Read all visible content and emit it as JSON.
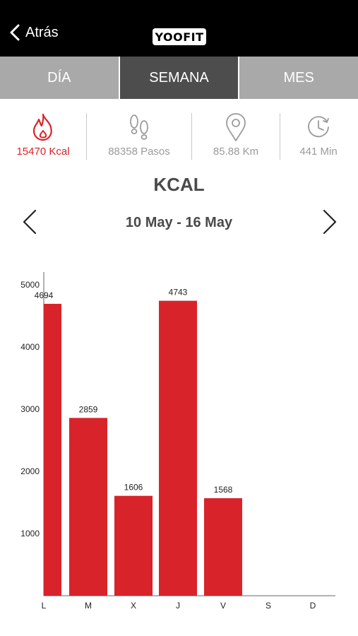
{
  "header": {
    "back_label": "Atrás",
    "logo_text": "YOOFIT"
  },
  "tabs": [
    {
      "label": "DÍA",
      "active": false
    },
    {
      "label": "SEMANA",
      "active": true
    },
    {
      "label": "MES",
      "active": false
    }
  ],
  "stats": [
    {
      "icon": "flame-icon",
      "value": "15470 Kcal",
      "color": "#d9232a"
    },
    {
      "icon": "footprints-icon",
      "value": "88358 Pasos",
      "color": "#9a9a9a"
    },
    {
      "icon": "location-pin-icon",
      "value": "85.88 Km",
      "color": "#9a9a9a"
    },
    {
      "icon": "clock-icon",
      "value": "441 Min",
      "color": "#9a9a9a"
    }
  ],
  "metric_title": "KCAL",
  "date_range": "10 May - 16 May",
  "colors": {
    "accent": "#d9232a",
    "active_tab": "#4d4d4d",
    "inactive_tab": "#a9a9a9"
  },
  "chart_data": {
    "type": "bar",
    "categories": [
      "L",
      "M",
      "X",
      "J",
      "V",
      "S",
      "D"
    ],
    "values": [
      4694,
      2859,
      1606,
      4743,
      1568,
      0,
      0
    ],
    "data_labels": [
      "4694",
      "2859",
      "1606",
      "4743",
      "1568",
      "",
      ""
    ],
    "yticks": [
      1000,
      2000,
      3000,
      4000,
      5000
    ],
    "ylim": [
      0,
      5200
    ],
    "grid": false,
    "bar_color": "#d9232a"
  }
}
